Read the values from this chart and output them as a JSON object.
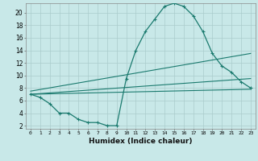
{
  "title": "",
  "xlabel": "Humidex (Indice chaleur)",
  "bg_color": "#c8e8e8",
  "line_color": "#1a7a6e",
  "grid_color": "#aacccc",
  "xlim": [
    -0.5,
    23.5
  ],
  "ylim": [
    1.5,
    21.5
  ],
  "yticks": [
    2,
    4,
    6,
    8,
    10,
    12,
    14,
    16,
    18,
    20
  ],
  "xticks": [
    0,
    1,
    2,
    3,
    4,
    5,
    6,
    7,
    8,
    9,
    10,
    11,
    12,
    13,
    14,
    15,
    16,
    17,
    18,
    19,
    20,
    21,
    22,
    23
  ],
  "series1_x": [
    0,
    1,
    2,
    3,
    4,
    5,
    6,
    7,
    8,
    9,
    10,
    11,
    12,
    13,
    14,
    15,
    16,
    17,
    18,
    19,
    20,
    21,
    22,
    23
  ],
  "series1_y": [
    7.0,
    6.5,
    5.5,
    4.0,
    4.0,
    3.0,
    2.5,
    2.5,
    2.0,
    2.0,
    9.5,
    14.0,
    17.0,
    19.0,
    21.0,
    21.5,
    21.0,
    19.5,
    17.0,
    13.5,
    11.5,
    10.5,
    9.0,
    8.0
  ],
  "series2_x": [
    0,
    23
  ],
  "series2_y": [
    7.0,
    7.8
  ],
  "series3_x": [
    0,
    23
  ],
  "series3_y": [
    7.0,
    9.5
  ],
  "series4_x": [
    0,
    23
  ],
  "series4_y": [
    7.5,
    13.5
  ]
}
